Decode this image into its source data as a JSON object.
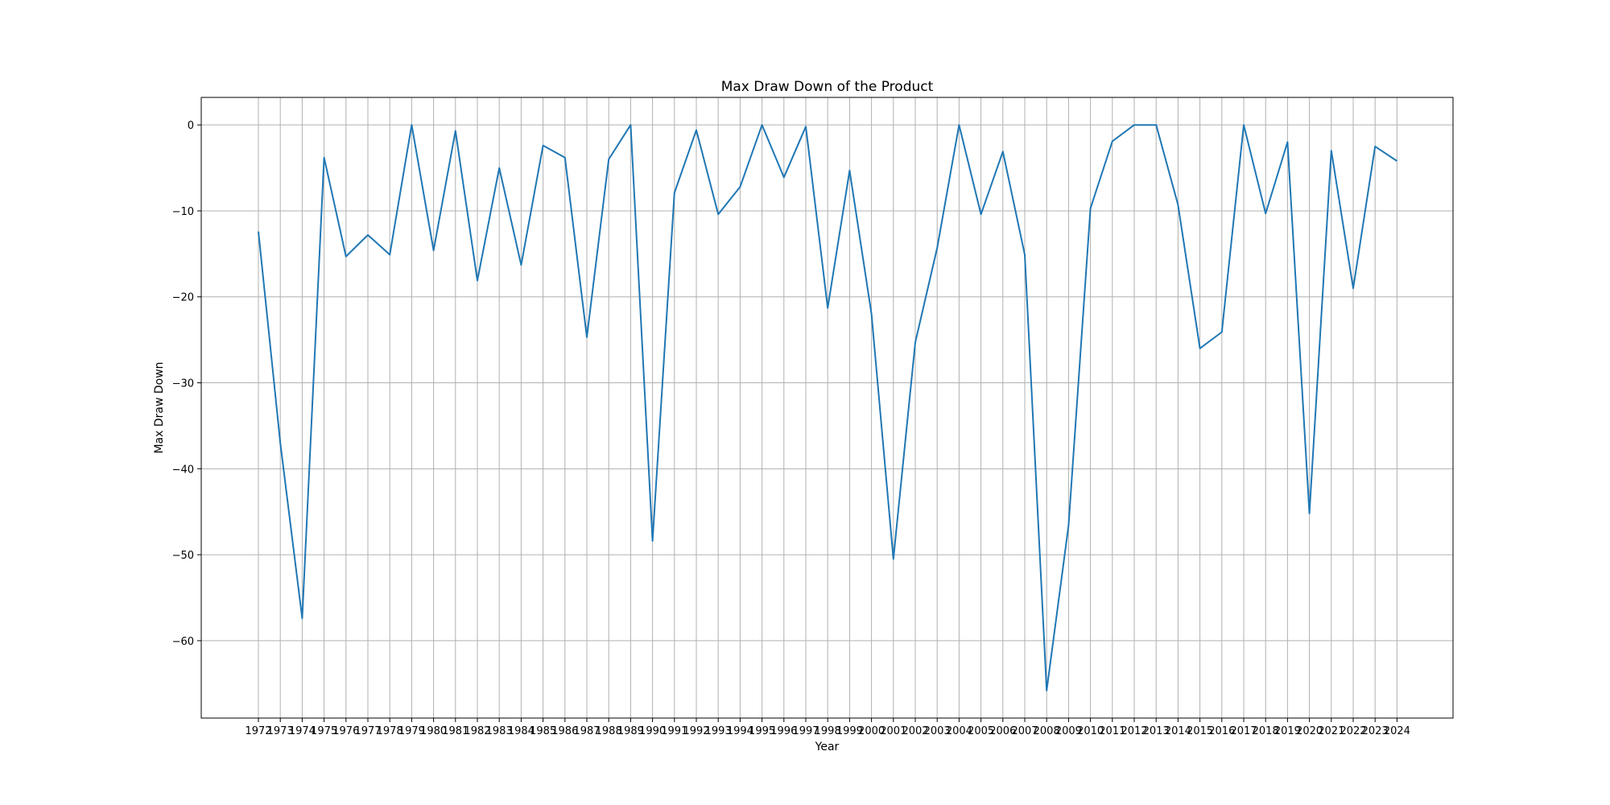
{
  "chart_data": {
    "type": "line",
    "title": "Max Draw Down of the Product",
    "xlabel": "Year",
    "ylabel": "Max Draw Down",
    "ylim": [
      -69,
      3.2
    ],
    "yticks": [
      0,
      -10,
      -20,
      -30,
      -40,
      -50,
      -60
    ],
    "ytick_labels": [
      "0",
      "−10",
      "−20",
      "−30",
      "−40",
      "−50",
      "−60"
    ],
    "grid": true,
    "color": "#1f77b4",
    "categories": [
      "1972",
      "1973",
      "1974",
      "1975",
      "1976",
      "1977",
      "1978",
      "1979",
      "1980",
      "1981",
      "1982",
      "1983",
      "1984",
      "1985",
      "1986",
      "1987",
      "1988",
      "1989",
      "1990",
      "1991",
      "1992",
      "1993",
      "1994",
      "1995",
      "1996",
      "1997",
      "1998",
      "1999",
      "2000",
      "2001",
      "2002",
      "2003",
      "2004",
      "2005",
      "2006",
      "2007",
      "2008",
      "2009",
      "2010",
      "2011",
      "2012",
      "2013",
      "2014",
      "2015",
      "2016",
      "2017",
      "2018",
      "2019",
      "2020",
      "2021",
      "2022",
      "2023",
      "2024"
    ],
    "series": [
      {
        "values": [
          -12.4,
          -37.0,
          -57.4,
          -3.8,
          -15.3,
          -12.8,
          -15.1,
          0.0,
          -14.6,
          -0.7,
          -18.1,
          -5.0,
          -16.3,
          -2.4,
          -3.8,
          -24.7,
          -4.0,
          0.0,
          -48.4,
          -7.9,
          -0.6,
          -10.4,
          -7.2,
          0.0,
          -6.1,
          -0.2,
          -21.3,
          -5.3,
          -22.0,
          -50.5,
          -25.3,
          -14.3,
          0.0,
          -10.4,
          -3.1,
          -15.1,
          -65.8,
          -46.6,
          -9.7,
          -1.9,
          0.0,
          0.0,
          -9.3,
          -26.0,
          -24.1,
          0.0,
          -10.3,
          -2.0,
          -45.2,
          -3.0,
          -19.0,
          -2.5,
          -4.2
        ]
      }
    ]
  }
}
